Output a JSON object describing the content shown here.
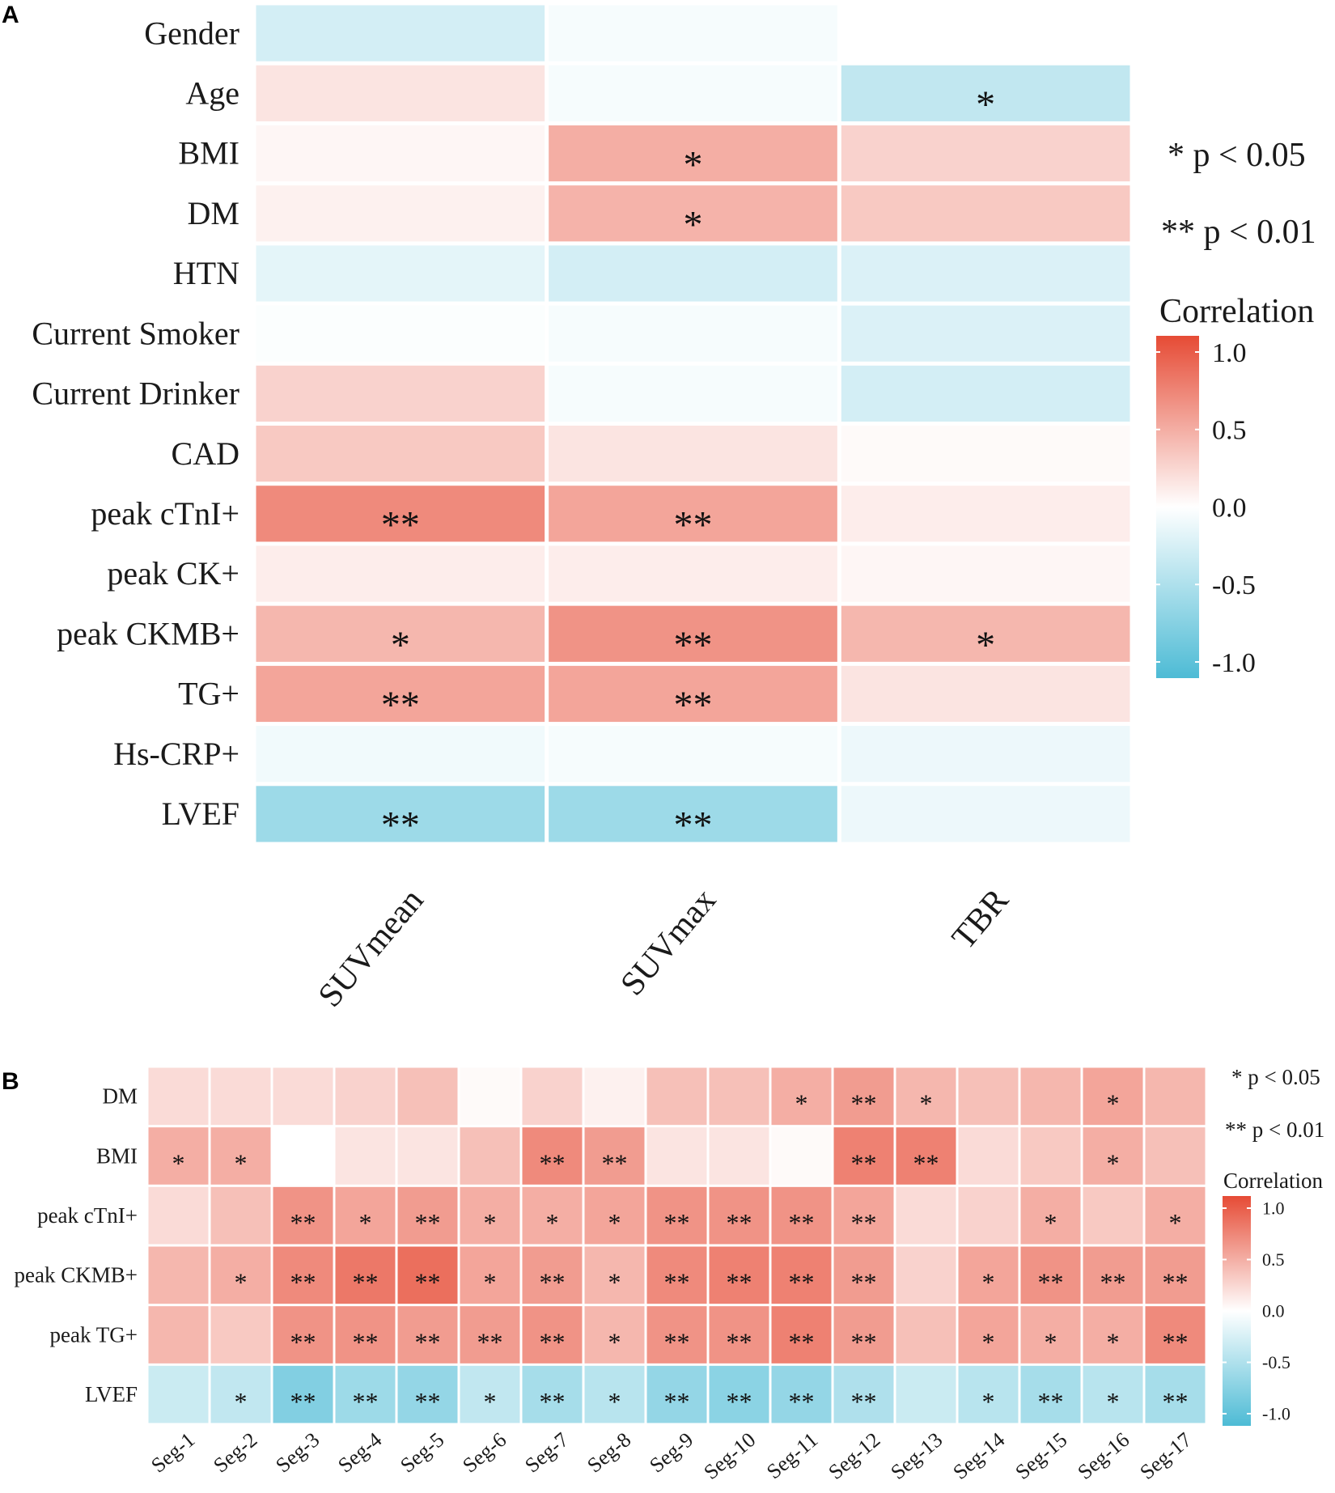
{
  "chart_data": [
    {
      "panel": "A",
      "type": "heatmap",
      "rows": [
        "Gender",
        "Age",
        "BMI",
        "DM",
        "HTN",
        "Current Smoker",
        "Current Drinker",
        "CAD",
        "peak cTnI+",
        "peak CK+",
        "peak CKMB+",
        "TG+",
        "Hs-CRP+",
        "LVEF"
      ],
      "columns": [
        "SUVmean",
        "SUVmax",
        "TBR"
      ],
      "values": [
        [
          -0.25,
          -0.05,
          null
        ],
        [
          0.15,
          -0.05,
          -0.35
        ],
        [
          0.05,
          0.45,
          0.25
        ],
        [
          0.08,
          0.42,
          0.3
        ],
        [
          -0.15,
          -0.25,
          -0.2
        ],
        [
          -0.02,
          -0.05,
          -0.2
        ],
        [
          0.25,
          -0.05,
          -0.25
        ],
        [
          0.3,
          0.15,
          0.03
        ],
        [
          0.65,
          0.5,
          0.1
        ],
        [
          0.1,
          0.1,
          0.05
        ],
        [
          0.4,
          0.6,
          0.4
        ],
        [
          0.5,
          0.5,
          0.15
        ],
        [
          -0.08,
          -0.05,
          -0.1
        ],
        [
          -0.55,
          -0.55,
          -0.1
        ]
      ],
      "significance": [
        [
          "",
          "",
          ""
        ],
        [
          "",
          "",
          "*"
        ],
        [
          "",
          "*",
          ""
        ],
        [
          "",
          "*",
          ""
        ],
        [
          "",
          "",
          ""
        ],
        [
          "",
          "",
          ""
        ],
        [
          "",
          "",
          ""
        ],
        [
          "",
          "",
          ""
        ],
        [
          "**",
          "**",
          ""
        ],
        [
          "",
          "",
          ""
        ],
        [
          "*",
          "**",
          "*"
        ],
        [
          "**",
          "**",
          ""
        ],
        [
          "",
          "",
          ""
        ],
        [
          "**",
          "**",
          ""
        ]
      ],
      "legend": {
        "sig1": "* p < 0.05",
        "sig2": "** p < 0.01",
        "title": "Correlation",
        "ticks": [
          "1.0",
          "0.5",
          "0.0",
          "-0.5",
          "-1.0"
        ],
        "tick_values": [
          1,
          0.5,
          0,
          -0.5,
          -1
        ]
      },
      "color_scale": {
        "low": "#4DBBD5",
        "mid": "#FFFFFF",
        "high": "#E64B35"
      },
      "range": [
        -1,
        1
      ]
    },
    {
      "panel": "B",
      "type": "heatmap",
      "rows": [
        "DM",
        "BMI",
        "peak cTnI+",
        "peak CKMB+",
        "peak TG+",
        "LVEF"
      ],
      "columns": [
        "Seg-1",
        "Seg-2",
        "Seg-3",
        "Seg-4",
        "Seg-5",
        "Seg-6",
        "Seg-7",
        "Seg-8",
        "Seg-9",
        "Seg-10",
        "Seg-11",
        "Seg-12",
        "Seg-13",
        "Seg-14",
        "Seg-15",
        "Seg-16",
        "Seg-17"
      ],
      "values": [
        [
          0.2,
          0.2,
          0.2,
          0.25,
          0.35,
          0.03,
          0.25,
          0.08,
          0.35,
          0.35,
          0.45,
          0.55,
          0.4,
          0.35,
          0.4,
          0.5,
          0.4
        ],
        [
          0.45,
          0.45,
          0.0,
          0.15,
          0.15,
          0.35,
          0.65,
          0.55,
          0.15,
          0.15,
          0.03,
          0.7,
          0.7,
          0.2,
          0.3,
          0.45,
          0.35
        ],
        [
          0.2,
          0.35,
          0.6,
          0.5,
          0.55,
          0.45,
          0.45,
          0.5,
          0.6,
          0.6,
          0.6,
          0.5,
          0.2,
          0.25,
          0.45,
          0.3,
          0.45
        ],
        [
          0.4,
          0.45,
          0.65,
          0.75,
          0.8,
          0.5,
          0.55,
          0.4,
          0.65,
          0.7,
          0.7,
          0.55,
          0.25,
          0.5,
          0.6,
          0.55,
          0.55
        ],
        [
          0.4,
          0.3,
          0.6,
          0.6,
          0.55,
          0.55,
          0.6,
          0.4,
          0.6,
          0.6,
          0.7,
          0.55,
          0.35,
          0.5,
          0.45,
          0.45,
          0.65
        ],
        [
          -0.3,
          -0.35,
          -0.7,
          -0.55,
          -0.6,
          -0.35,
          -0.5,
          -0.4,
          -0.6,
          -0.65,
          -0.6,
          -0.45,
          -0.3,
          -0.4,
          -0.5,
          -0.4,
          -0.5
        ]
      ],
      "significance": [
        [
          "",
          "",
          "",
          "",
          "",
          "",
          "",
          "",
          "",
          "",
          "*",
          "**",
          "*",
          "",
          "",
          "*",
          ""
        ],
        [
          "*",
          "*",
          "",
          "",
          "",
          "",
          "**",
          "**",
          "",
          "",
          "",
          "**",
          "**",
          "",
          "",
          "*",
          ""
        ],
        [
          "",
          "",
          "**",
          "*",
          "**",
          "*",
          "*",
          "*",
          "**",
          "**",
          "**",
          "**",
          "",
          "",
          "*",
          "",
          "*"
        ],
        [
          "",
          "*",
          "**",
          "**",
          "**",
          "*",
          "**",
          "*",
          "**",
          "**",
          "**",
          "**",
          "",
          "*",
          "**",
          "**",
          "**"
        ],
        [
          "",
          "",
          "**",
          "**",
          "**",
          "**",
          "**",
          "*",
          "**",
          "**",
          "**",
          "**",
          "",
          "*",
          "*",
          "*",
          "**"
        ],
        [
          "",
          "*",
          "**",
          "**",
          "**",
          "*",
          "**",
          "*",
          "**",
          "**",
          "**",
          "**",
          "",
          "*",
          "**",
          "*",
          "**"
        ]
      ],
      "legend": {
        "sig1": "* p < 0.05",
        "sig2": "** p < 0.01",
        "title": "Correlation",
        "ticks": [
          "1.0",
          "0.5",
          "0.0",
          "-0.5",
          "-1.0"
        ],
        "tick_values": [
          1,
          0.5,
          0,
          -0.5,
          -1
        ]
      },
      "color_scale": {
        "low": "#4DBBD5",
        "mid": "#FFFFFF",
        "high": "#E64B35"
      },
      "range": [
        -1,
        1
      ]
    }
  ]
}
